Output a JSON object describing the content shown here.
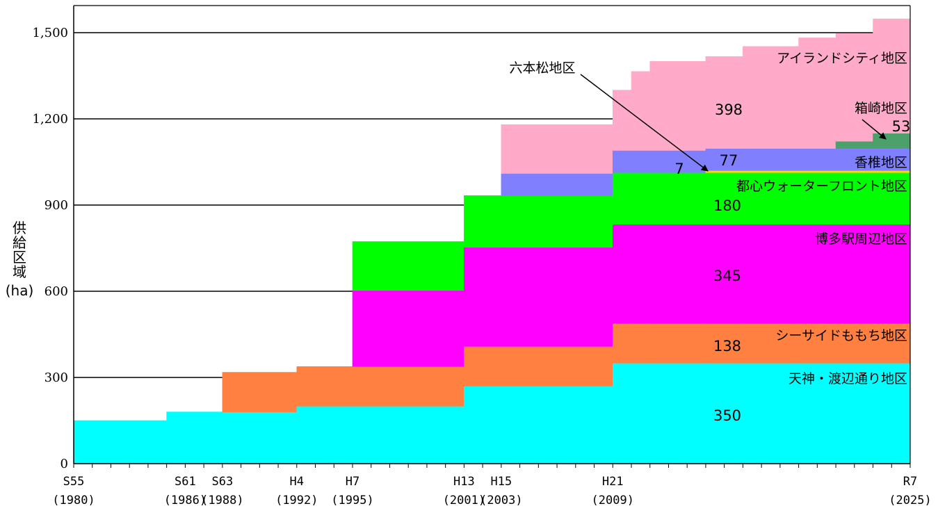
{
  "chart_data": {
    "type": "area",
    "ylabel_lines": [
      "供",
      "給",
      "区",
      "域",
      "(ha)"
    ],
    "ylim": [
      0,
      1500
    ],
    "yticks": [
      {
        "v": 0,
        "label": "0"
      },
      {
        "v": 300,
        "label": "300"
      },
      {
        "v": 600,
        "label": "600"
      },
      {
        "v": 900,
        "label": "900"
      },
      {
        "v": 1200,
        "label": "1,200"
      },
      {
        "v": 1500,
        "label": "1,500"
      }
    ],
    "x_start_year": 1980,
    "x_end_year": 2025,
    "xticks": [
      {
        "year": 1980,
        "line1": "S55",
        "line2": "(1980)"
      },
      {
        "year": 1986,
        "line1": "S61",
        "line2": "(1986)"
      },
      {
        "year": 1988,
        "line1": "S63",
        "line2": "(1988)"
      },
      {
        "year": 1992,
        "line1": "H4",
        "line2": "(1992)"
      },
      {
        "year": 1995,
        "line1": "H7",
        "line2": "(1995)"
      },
      {
        "year": 2001,
        "line1": "H13",
        "line2": "(2001)"
      },
      {
        "year": 2003,
        "line1": "H15",
        "line2": "(2003)"
      },
      {
        "year": 2009,
        "line1": "H21",
        "line2": "(2009)"
      },
      {
        "year": 2025,
        "line1": "R7",
        "line2": "(2025)"
      }
    ],
    "series": [
      {
        "name": "天神・渡辺通り地区",
        "color": "#00FFFF",
        "final_value": "350",
        "segments": [
          [
            1980,
            1985,
            150
          ],
          [
            1985,
            1988,
            180
          ],
          [
            1988,
            1992,
            180
          ],
          [
            1992,
            1995,
            200
          ],
          [
            1995,
            2001,
            200
          ],
          [
            2001,
            2009,
            270
          ],
          [
            2009,
            2025,
            350
          ]
        ]
      },
      {
        "name": "シーサイドももち地区",
        "color": "#FF8040",
        "final_value": "138",
        "segments": [
          [
            1988,
            1992,
            138
          ],
          [
            1992,
            1995,
            138
          ],
          [
            1995,
            2001,
            138
          ],
          [
            2001,
            2009,
            138
          ],
          [
            2009,
            2025,
            138
          ]
        ]
      },
      {
        "name": "博多駅周辺地区",
        "color": "#FF00FF",
        "final_value": "345",
        "segments": [
          [
            1995,
            2001,
            265
          ],
          [
            2001,
            2009,
            345
          ],
          [
            2009,
            2025,
            345
          ]
        ]
      },
      {
        "name": "都心ウォーターフロント地区",
        "color": "#00FF00",
        "final_value": "180",
        "segments": [
          [
            1995,
            2001,
            170
          ],
          [
            2001,
            2009,
            180
          ],
          [
            2009,
            2025,
            180
          ]
        ]
      },
      {
        "name": "六本松地区",
        "color": "#FFD700",
        "final_value": "7",
        "segments": [
          [
            2014,
            2025,
            7
          ]
        ]
      },
      {
        "name": "香椎地区",
        "color": "#8080FF",
        "final_value": "77",
        "segments": [
          [
            2003,
            2009,
            77
          ],
          [
            2009,
            2025,
            77
          ]
        ]
      },
      {
        "name": "箱崎地区",
        "color": "#4CA06A",
        "final_value": "53",
        "segments": [
          [
            2021,
            2023,
            25
          ],
          [
            2023,
            2025,
            53
          ]
        ]
      },
      {
        "name": "アイランドシティ地区",
        "color": "#FFAAC8",
        "final_value": "398",
        "segments": [
          [
            2003,
            2009,
            170
          ],
          [
            2009,
            2010,
            210
          ],
          [
            2010,
            2011,
            275
          ],
          [
            2011,
            2014,
            310
          ],
          [
            2014,
            2016,
            320
          ],
          [
            2016,
            2019,
            355
          ],
          [
            2019,
            2021,
            385
          ],
          [
            2021,
            2023,
            375
          ],
          [
            2023,
            2025,
            398
          ]
        ]
      }
    ]
  }
}
